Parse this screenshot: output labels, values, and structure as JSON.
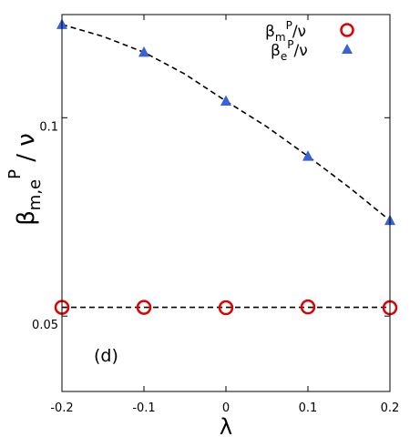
{
  "chart_data": {
    "type": "scatter",
    "panel_label": "(d)",
    "xlabel": "λ",
    "ylabel": {
      "base": "β",
      "subscript": "m,e",
      "superscript": "P",
      "tail": " / ν"
    },
    "xlim": [
      -0.2,
      0.2
    ],
    "ylim": [
      0.031,
      0.126
    ],
    "x_ticks": [
      -0.2,
      -0.1,
      0,
      0.1,
      0.2
    ],
    "x_tick_labels": [
      "-0.2",
      "-0.1",
      "0",
      "0.1",
      "0.2"
    ],
    "y_ticks": [
      0.05,
      0.1
    ],
    "y_tick_labels": [
      "0.05",
      "0.1"
    ],
    "legend_position": "top-right",
    "series": [
      {
        "name": "βmP/ν",
        "label": {
          "base": "β",
          "sub": "m",
          "sup": "P",
          "tail": "/ν"
        },
        "marker": "open-circle",
        "color": "#e00000",
        "x": [
          -0.2,
          -0.1,
          0,
          0.1,
          0.2
        ],
        "y": [
          0.0522,
          0.0522,
          0.0521,
          0.0523,
          0.0521
        ],
        "fit_line": {
          "style": "dashed",
          "color": "#000000",
          "x": [
            -0.2,
            0.2
          ],
          "y": [
            0.0522,
            0.0522
          ]
        }
      },
      {
        "name": "βeP/ν",
        "label": {
          "base": "β",
          "sub": "e",
          "sup": "P",
          "tail": "/ν"
        },
        "marker": "filled-triangle",
        "color": "#3a62d8",
        "x": [
          -0.2,
          -0.1,
          0,
          0.1,
          0.2
        ],
        "y": [
          0.1235,
          0.1165,
          0.1042,
          0.0903,
          0.0741
        ],
        "fit_line": {
          "style": "dashed",
          "color": "#000000",
          "x": [
            -0.2,
            -0.15,
            -0.1,
            -0.05,
            0,
            0.05,
            0.1,
            0.15,
            0.2
          ],
          "y": [
            0.1235,
            0.1205,
            0.1165,
            0.111,
            0.1042,
            0.0977,
            0.0903,
            0.0825,
            0.0741
          ]
        }
      }
    ]
  }
}
